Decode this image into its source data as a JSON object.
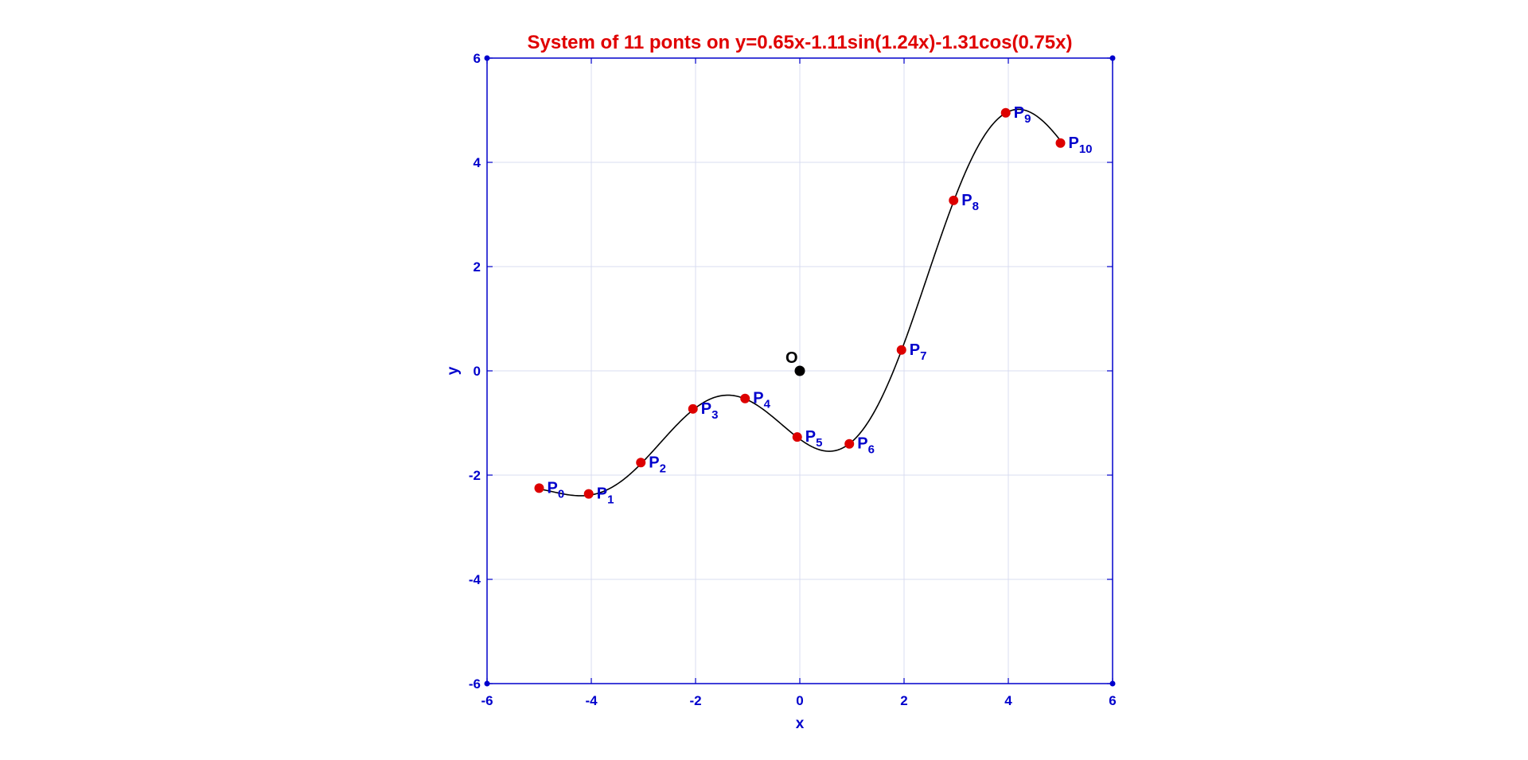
{
  "chart_data": {
    "type": "scatter",
    "title": "System of 11 ponts on  y=0.65x-1.11sin(1.24x)-1.31cos(0.75x)",
    "xlabel": "x",
    "ylabel": "y",
    "xlim": [
      -6,
      6
    ],
    "ylim": [
      -6,
      6
    ],
    "xticks": [
      -6,
      -4,
      -2,
      0,
      2,
      4,
      6
    ],
    "yticks": [
      -6,
      -4,
      -2,
      0,
      2,
      4,
      6
    ],
    "xtick_labels": [
      "-6",
      "-4",
      "-2",
      "0",
      "2",
      "4",
      "6"
    ],
    "ytick_labels": [
      "-6",
      "-4",
      "-2",
      "0",
      "2",
      "4",
      "6"
    ],
    "grid": true,
    "curve": {
      "a": 0.65,
      "b": 1.11,
      "c": 1.24,
      "d": 1.31,
      "e": 0.75,
      "x_range": [
        -5,
        5
      ]
    },
    "origin": {
      "label": "O",
      "x": 0,
      "y": 0
    },
    "points": [
      {
        "base": "P",
        "sub": "0",
        "x": -5,
        "y": -2.25
      },
      {
        "base": "P",
        "sub": "1",
        "x": -4.05,
        "y": -2.36
      },
      {
        "base": "P",
        "sub": "2",
        "x": -3.05,
        "y": -1.76
      },
      {
        "base": "P",
        "sub": "3",
        "x": -2.05,
        "y": -0.73
      },
      {
        "base": "P",
        "sub": "4",
        "x": -1.05,
        "y": -0.53
      },
      {
        "base": "P",
        "sub": "5",
        "x": -0.05,
        "y": -1.27
      },
      {
        "base": "P",
        "sub": "6",
        "x": 0.95,
        "y": -1.4
      },
      {
        "base": "P",
        "sub": "7",
        "x": 1.95,
        "y": 0.4
      },
      {
        "base": "P",
        "sub": "8",
        "x": 2.95,
        "y": 3.27
      },
      {
        "base": "P",
        "sub": "9",
        "x": 3.95,
        "y": 4.95
      },
      {
        "base": "P",
        "sub": "10",
        "x": 5,
        "y": 4.37
      }
    ],
    "colors": {
      "axis": "#0000cc",
      "title": "#e00000",
      "grid": "#d9dcf0",
      "point": "#dd0000",
      "curve": "#000000",
      "origin": "#000000",
      "label": "#0000cc"
    }
  }
}
